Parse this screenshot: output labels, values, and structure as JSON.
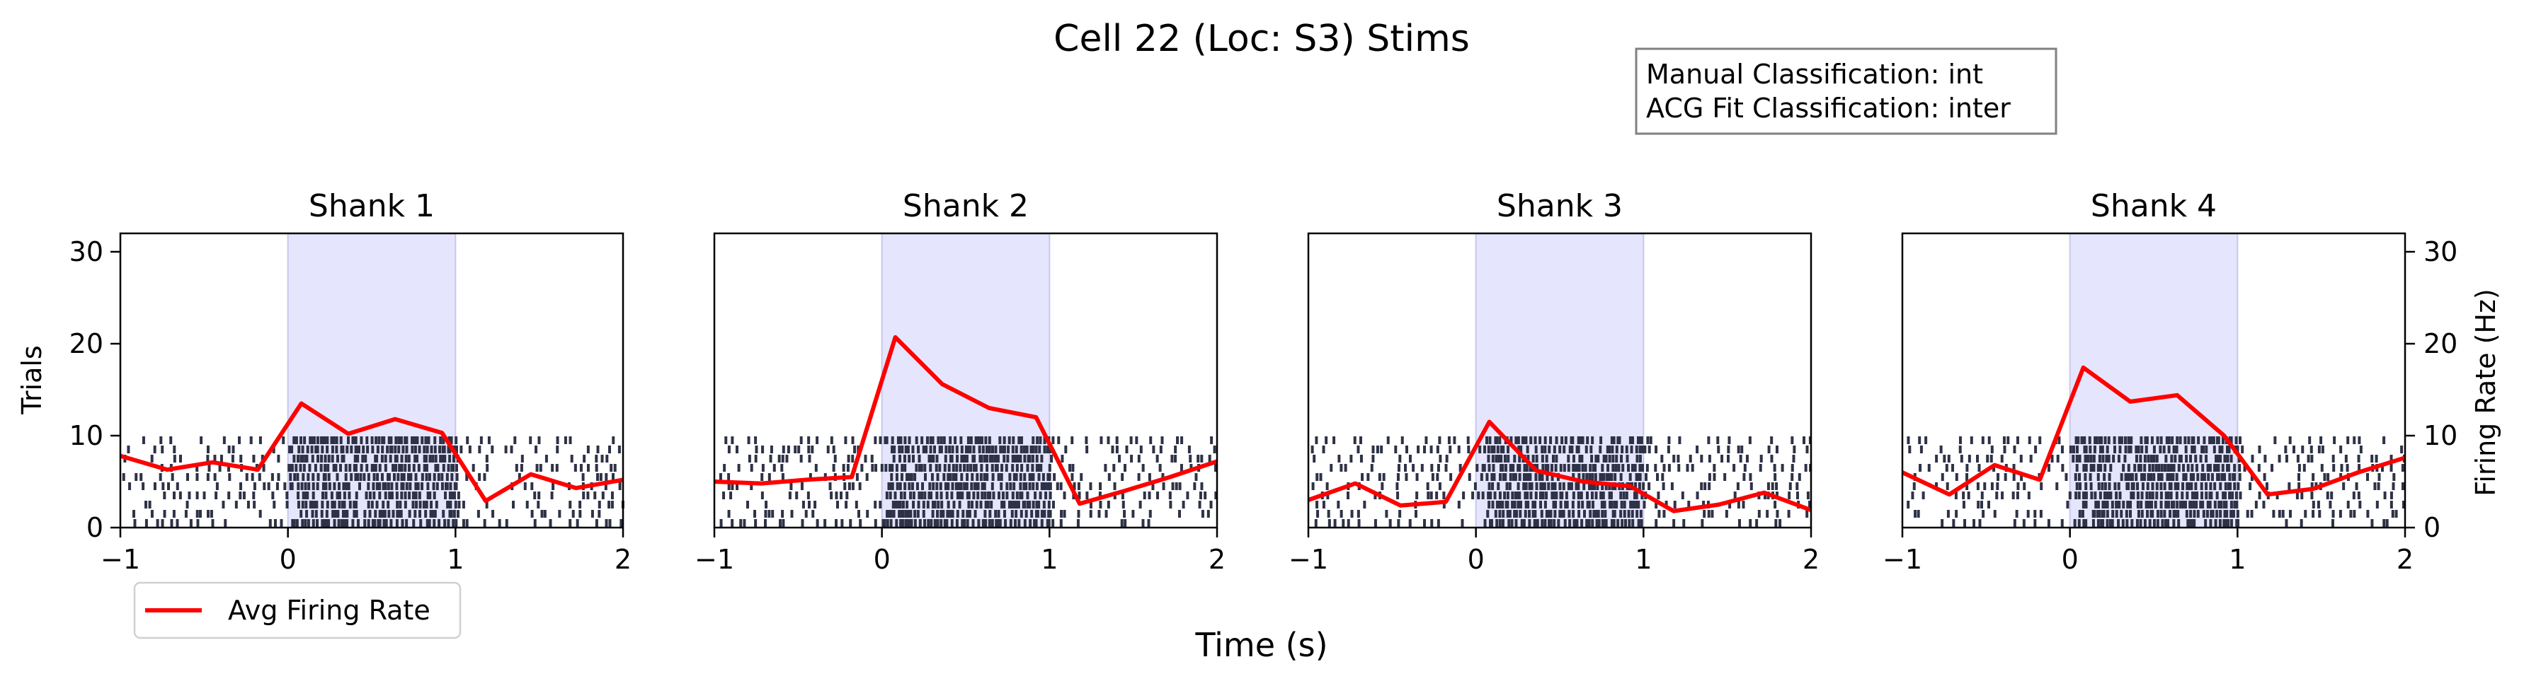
{
  "figure": {
    "title": "Cell 22 (Loc: S3) Stims",
    "xlabel": "Time (s)",
    "ylabel_left": "Trials",
    "ylabel_right": "Firing Rate (Hz)",
    "annotation": [
      "Manual Classification: int",
      "ACG Fit Classification: inter"
    ],
    "legend_label": "Avg Firing Rate"
  },
  "colors": {
    "raster": "#2e3246",
    "rate_line": "#ff0000",
    "stim_fill": "#e5e5fd",
    "stim_edge": "#c8c8f0",
    "axes": "#000000"
  },
  "chart_data": {
    "type": "line",
    "xlim": [
      -1,
      2
    ],
    "ylim": [
      0,
      32
    ],
    "x_ticks": [
      -1,
      0,
      1,
      2
    ],
    "y_ticks": [
      0,
      10,
      20,
      30
    ],
    "stim_window": [
      0,
      1
    ],
    "raster_trials": 10,
    "grid": false,
    "legend_position": "bottom-left",
    "panels": [
      {
        "title": "Shank 1",
        "series": [
          {
            "name": "Avg Firing Rate",
            "x": [
              -1.0,
              -0.72,
              -0.45,
              -0.18,
              0.08,
              0.36,
              0.64,
              0.92,
              1.18,
              1.45,
              1.72,
              2.0
            ],
            "y": [
              7.8,
              6.3,
              7.1,
              6.3,
              13.5,
              10.2,
              11.8,
              10.3,
              2.9,
              5.8,
              4.3,
              5.2
            ]
          }
        ]
      },
      {
        "title": "Shank 2",
        "series": [
          {
            "name": "Avg Firing Rate",
            "x": [
              -1.0,
              -0.72,
              -0.45,
              -0.18,
              0.08,
              0.36,
              0.64,
              0.92,
              1.18,
              1.45,
              1.72,
              2.0
            ],
            "y": [
              5.0,
              4.8,
              5.2,
              5.5,
              20.7,
              15.6,
              13.0,
              12.0,
              2.6,
              4.0,
              5.5,
              7.2
            ]
          }
        ]
      },
      {
        "title": "Shank 3",
        "series": [
          {
            "name": "Avg Firing Rate",
            "x": [
              -1.0,
              -0.72,
              -0.45,
              -0.18,
              0.08,
              0.36,
              0.64,
              0.92,
              1.18,
              1.45,
              1.72,
              2.0
            ],
            "y": [
              3.0,
              4.8,
              2.4,
              2.8,
              11.5,
              6.2,
              5.0,
              4.5,
              1.8,
              2.5,
              3.8,
              1.9
            ]
          }
        ]
      },
      {
        "title": "Shank 4",
        "series": [
          {
            "name": "Avg Firing Rate",
            "x": [
              -1.0,
              -0.72,
              -0.45,
              -0.18,
              0.08,
              0.36,
              0.64,
              0.92,
              1.18,
              1.45,
              1.72,
              2.0
            ],
            "y": [
              6.0,
              3.6,
              6.8,
              5.2,
              17.4,
              13.7,
              14.4,
              10.0,
              3.6,
              4.2,
              6.0,
              7.6
            ]
          }
        ]
      }
    ]
  }
}
